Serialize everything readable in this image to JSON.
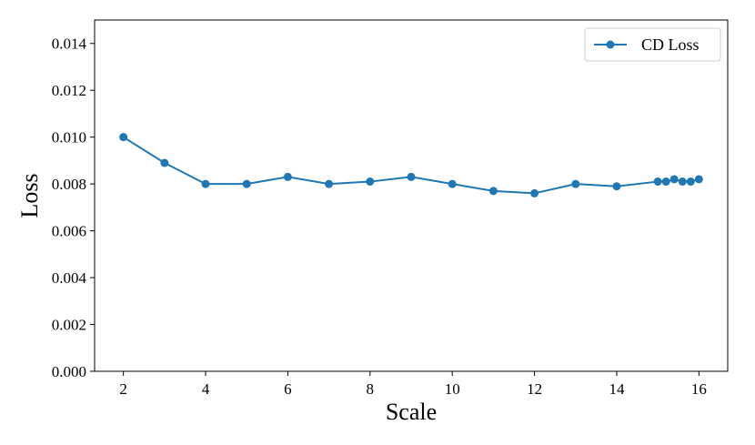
{
  "chart_data": {
    "type": "line",
    "title": "",
    "xlabel": "Scale",
    "ylabel": "Loss",
    "xlim": [
      1.3,
      16.7
    ],
    "ylim": [
      0.0,
      0.015
    ],
    "xticks": [
      2,
      4,
      6,
      8,
      10,
      12,
      14,
      16
    ],
    "xtick_labels": [
      "2",
      "4",
      "6",
      "8",
      "10",
      "12",
      "14",
      "16"
    ],
    "yticks": [
      0.0,
      0.002,
      0.004,
      0.006,
      0.008,
      0.01,
      0.012,
      0.014
    ],
    "ytick_labels": [
      "0.000",
      "0.002",
      "0.004",
      "0.006",
      "0.008",
      "0.010",
      "0.012",
      "0.014"
    ],
    "grid": false,
    "legend_position": "top-right",
    "series": [
      {
        "name": "CD Loss",
        "color": "#1f77b4",
        "marker": "circle",
        "x": [
          2,
          3,
          4,
          5,
          6,
          7,
          8,
          9,
          10,
          11,
          12,
          13,
          14,
          15,
          15.2,
          15.4,
          15.6,
          15.8,
          16
        ],
        "y": [
          0.01,
          0.0089,
          0.008,
          0.008,
          0.0083,
          0.008,
          0.0081,
          0.0083,
          0.008,
          0.0077,
          0.0076,
          0.008,
          0.0079,
          0.0081,
          0.0081,
          0.0082,
          0.0081,
          0.0081,
          0.0082
        ]
      }
    ]
  }
}
